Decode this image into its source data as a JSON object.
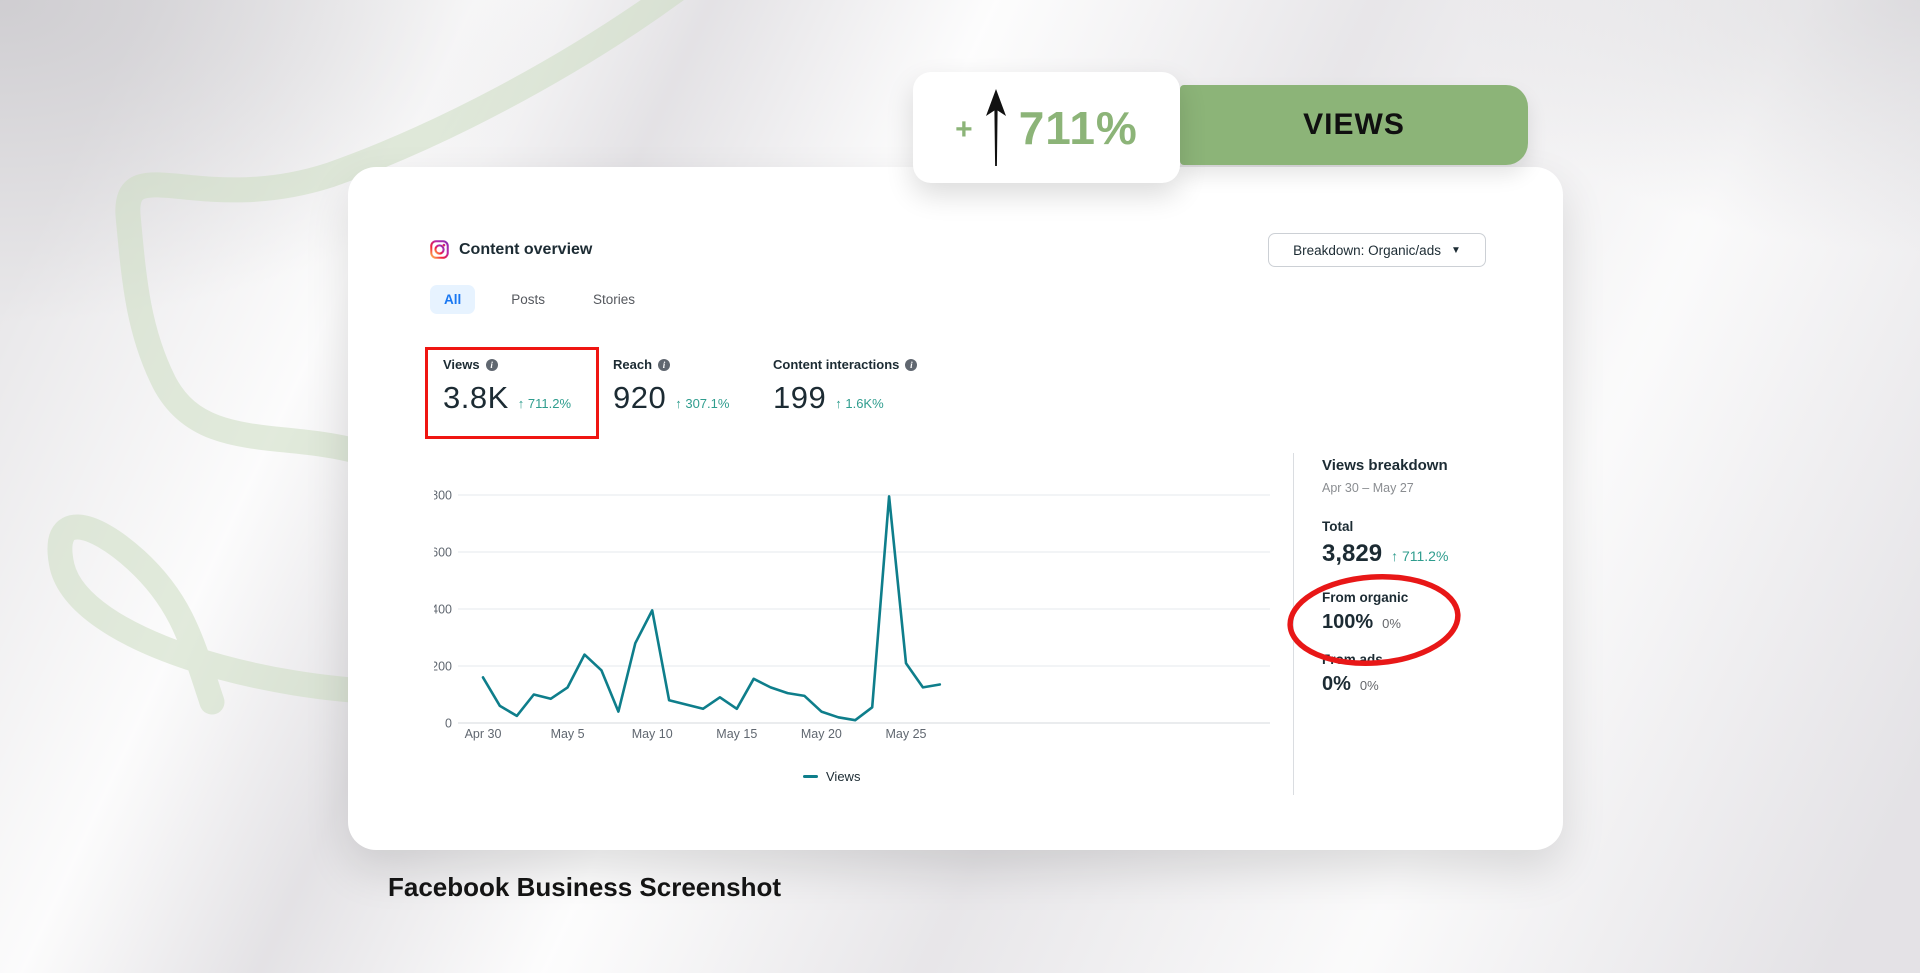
{
  "badge": {
    "plus": "+",
    "value": "711%",
    "arrow_icon": "up-arrow"
  },
  "banner": {
    "label": "VIEWS"
  },
  "caption": "Facebook Business Screenshot",
  "card": {
    "header": {
      "title": "Content overview",
      "icon": "instagram"
    },
    "breakdown_dropdown": {
      "label": "Breakdown: Organic/ads",
      "caret_icon": "chevron-down"
    },
    "tabs": [
      {
        "label": "All",
        "active": true
      },
      {
        "label": "Posts",
        "active": false
      },
      {
        "label": "Stories",
        "active": false
      }
    ],
    "metrics": [
      {
        "label": "Views",
        "value": "3.8K",
        "delta": "↑ 711.2%",
        "highlighted": true
      },
      {
        "label": "Reach",
        "value": "920",
        "delta": "↑ 307.1%",
        "highlighted": false
      },
      {
        "label": "Content interactions",
        "value": "199",
        "delta": "↑ 1.6K%",
        "highlighted": false
      }
    ],
    "views_breakdown": {
      "title": "Views breakdown",
      "date_range": "Apr 30 – May 27",
      "total_label": "Total",
      "total_value": "3,829",
      "total_delta": "↑ 711.2%",
      "organic_label": "From organic",
      "organic_value": "100%",
      "organic_delta": "0%",
      "ads_label": "From ads",
      "ads_value": "0%",
      "ads_delta": "0%"
    },
    "legend": "Views"
  },
  "chart_data": {
    "type": "line",
    "title": "Views",
    "x": [
      "Apr 30",
      "May 1",
      "May 2",
      "May 3",
      "May 4",
      "May 5",
      "May 6",
      "May 7",
      "May 8",
      "May 9",
      "May 10",
      "May 11",
      "May 12",
      "May 13",
      "May 14",
      "May 15",
      "May 16",
      "May 17",
      "May 18",
      "May 19",
      "May 20",
      "May 21",
      "May 22",
      "May 23",
      "May 24",
      "May 25",
      "May 26",
      "May 27"
    ],
    "series": [
      {
        "name": "Views",
        "values": [
          160,
          60,
          25,
          100,
          85,
          125,
          240,
          185,
          40,
          280,
          395,
          80,
          65,
          50,
          90,
          50,
          155,
          125,
          105,
          95,
          40,
          20,
          10,
          55,
          795,
          210,
          125,
          135
        ]
      }
    ],
    "x_ticks": {
      "indices": [
        0,
        5,
        10,
        15,
        20,
        25
      ],
      "labels": [
        "Apr 30",
        "May 5",
        "May 10",
        "May 15",
        "May 20",
        "May 25"
      ]
    },
    "yticks": [
      0,
      200,
      400,
      600,
      800
    ],
    "ylim": [
      0,
      800
    ],
    "grid": "horizontal",
    "legend_position": "bottom",
    "line_color": "#0e7e8b"
  },
  "colors": {
    "accent_green": "#8cb478",
    "chart_teal": "#0e7e8b",
    "delta_teal": "#2f9d8e",
    "tab_blue": "#1877f2",
    "highlight_red": "#ef1511"
  }
}
